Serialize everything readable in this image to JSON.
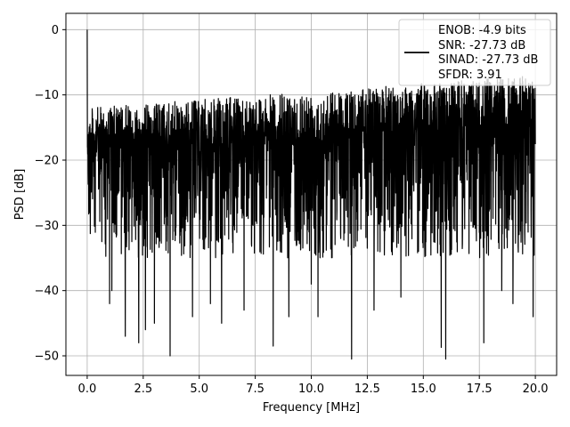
{
  "chart_data": {
    "type": "line",
    "title": "",
    "xlabel": "Frequency [MHz]",
    "ylabel": "PSD [dB]",
    "xlim": [
      -0.95,
      20.95
    ],
    "ylim": [
      -53,
      2.5
    ],
    "xticks": [
      0.0,
      2.5,
      5.0,
      7.5,
      10.0,
      12.5,
      15.0,
      17.5,
      20.0
    ],
    "xtick_labels": [
      "0.0",
      "2.5",
      "5.0",
      "7.5",
      "10.0",
      "12.5",
      "15.0",
      "17.5",
      "20.0"
    ],
    "yticks": [
      0,
      -10,
      -20,
      -30,
      -40,
      -50
    ],
    "ytick_labels": [
      "0",
      "−10",
      "−20",
      "−30",
      "−40",
      "−50"
    ],
    "grid": true,
    "legend_position": "top-right",
    "legend_lines": [
      "ENOB: -4.9 bits",
      "SNR: -27.73 dB",
      "SINAD: -27.73 dB",
      "SFDR: 3.91"
    ],
    "series": [
      {
        "color": "#000000",
        "noise_profile": {
          "x_range": [
            0.0,
            20.0
          ],
          "upper_envelope_start_end": [
            -12,
            -7
          ],
          "median": -20,
          "lower_envelope": -33
        },
        "peak": {
          "x": 0.0,
          "y": 0.0
        },
        "deep_dips": [
          {
            "x": 1.0,
            "y": -42
          },
          {
            "x": 1.1,
            "y": -40
          },
          {
            "x": 1.7,
            "y": -47
          },
          {
            "x": 2.3,
            "y": -48
          },
          {
            "x": 2.6,
            "y": -46
          },
          {
            "x": 3.0,
            "y": -45
          },
          {
            "x": 3.7,
            "y": -50
          },
          {
            "x": 4.7,
            "y": -44
          },
          {
            "x": 5.5,
            "y": -42
          },
          {
            "x": 6.0,
            "y": -45
          },
          {
            "x": 7.0,
            "y": -43
          },
          {
            "x": 8.3,
            "y": -48.5
          },
          {
            "x": 9.0,
            "y": -44
          },
          {
            "x": 10.0,
            "y": -39
          },
          {
            "x": 10.3,
            "y": -44
          },
          {
            "x": 11.8,
            "y": -50.5
          },
          {
            "x": 12.8,
            "y": -43
          },
          {
            "x": 14.0,
            "y": -41
          },
          {
            "x": 15.8,
            "y": -48.7
          },
          {
            "x": 16.0,
            "y": -50.5
          },
          {
            "x": 17.7,
            "y": -48
          },
          {
            "x": 18.5,
            "y": -40
          },
          {
            "x": 19.0,
            "y": -42
          },
          {
            "x": 19.9,
            "y": -44
          }
        ]
      }
    ]
  }
}
